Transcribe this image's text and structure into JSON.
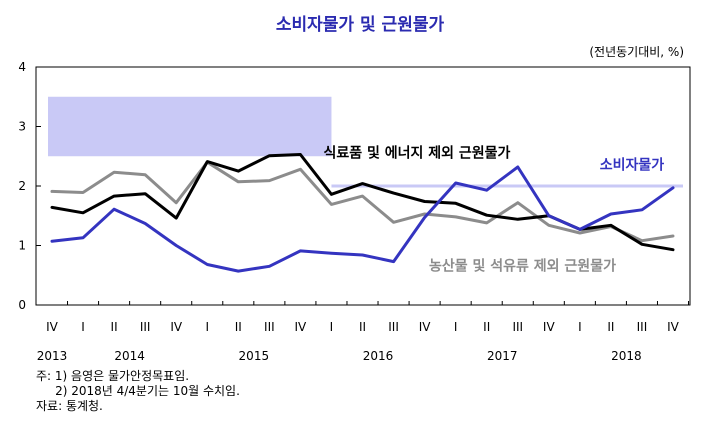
{
  "title": "소비자물가 및 근원물가",
  "unit_label": "(전년동기대비, %)",
  "notes": [
    "주: 1) 음영은 물가안정목표임.",
    "     2) 2018년 4/4분기는 10월 수치임.",
    "자료: 통계청."
  ],
  "chart_data": {
    "type": "line",
    "title": "소비자물가 및 근원물가",
    "ylim": [
      0,
      4
    ],
    "yticks": [
      "0",
      "1",
      "2",
      "3",
      "4"
    ],
    "x": [
      "IV",
      "I",
      "II",
      "III",
      "IV",
      "I",
      "II",
      "III",
      "IV",
      "I",
      "II",
      "III",
      "IV",
      "I",
      "II",
      "III",
      "IV",
      "I",
      "II",
      "III",
      "IV"
    ],
    "years": [
      {
        "label": "2013",
        "index": 0
      },
      {
        "label": "2014",
        "index": 2.5
      },
      {
        "label": "2015",
        "index": 6.5
      },
      {
        "label": "2016",
        "index": 10.5
      },
      {
        "label": "2017",
        "index": 14.5
      },
      {
        "label": "2018",
        "index": 18.5
      }
    ],
    "target_band": [
      {
        "from_index": 0,
        "to_index": 9,
        "lower": 2.5,
        "upper": 3.5
      },
      {
        "from_index": 9,
        "to_index": 20,
        "value": 2.0
      }
    ],
    "series": [
      {
        "name": "소비자물가",
        "color": "#3434c0",
        "values": [
          1.07,
          1.13,
          1.61,
          1.37,
          1.0,
          0.68,
          0.57,
          0.65,
          0.91,
          0.87,
          0.84,
          0.73,
          1.47,
          2.05,
          1.93,
          2.32,
          1.5,
          1.27,
          1.53,
          1.6,
          1.97
        ]
      },
      {
        "name": "식료품 및 에너지 제외 근원물가",
        "color": "#000000",
        "values": [
          1.64,
          1.55,
          1.83,
          1.87,
          1.46,
          2.41,
          2.25,
          2.51,
          2.53,
          1.86,
          2.04,
          1.88,
          1.74,
          1.71,
          1.51,
          1.44,
          1.5,
          1.27,
          1.34,
          1.02,
          0.93
        ]
      },
      {
        "name": "농산물 및 석유류 제외 근원물가",
        "color": "#8c8c8c",
        "values": [
          1.91,
          1.89,
          2.23,
          2.19,
          1.72,
          2.4,
          2.07,
          2.09,
          2.28,
          1.69,
          1.83,
          1.39,
          1.53,
          1.48,
          1.38,
          1.72,
          1.34,
          1.21,
          1.32,
          1.08,
          1.16
        ]
      }
    ],
    "series_labels": [
      {
        "text": "식료품 및 에너지 제외 근원물가",
        "color": "#000000",
        "x_index": 9.0,
        "y": 2.48
      },
      {
        "text": "소비자물가",
        "color": "#3434c0",
        "x_index": 17.9,
        "y": 2.28
      },
      {
        "text": "농산물 및 석유류 제외 근원물가",
        "color": "#8c8c8c",
        "x_index": 12.4,
        "y": 0.58
      }
    ]
  }
}
